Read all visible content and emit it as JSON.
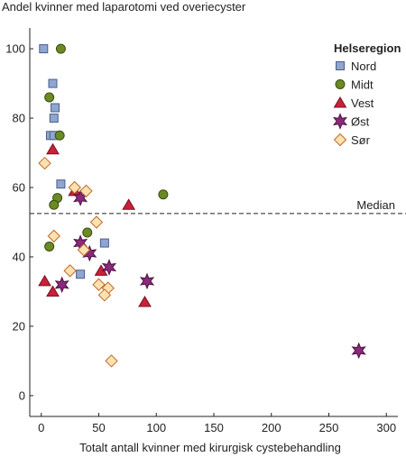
{
  "chart_data": {
    "type": "scatter",
    "title": "Andel kvinner med laparotomi ved overiecyster",
    "xlabel": "Totalt antall kvinner med kirurgisk cystebehandling",
    "ylabel": "",
    "xlim": [
      -10,
      310
    ],
    "ylim": [
      -6,
      106
    ],
    "xticks": [
      0,
      50,
      100,
      150,
      200,
      250,
      300
    ],
    "yticks": [
      0,
      20,
      40,
      60,
      80,
      100
    ],
    "grid": false,
    "legend_title": "Helseregion",
    "legend_position": "top-right",
    "median": {
      "label": "Median",
      "y": 52.5
    },
    "series": [
      {
        "name": "Nord",
        "marker": "square",
        "color": "#8fa6cf",
        "stroke": "#4a5e8c",
        "points": [
          [
            2,
            100
          ],
          [
            10,
            90
          ],
          [
            12,
            83
          ],
          [
            11,
            80
          ],
          [
            8,
            75
          ],
          [
            11,
            75
          ],
          [
            17,
            61
          ],
          [
            55,
            44
          ],
          [
            34,
            35
          ]
        ]
      },
      {
        "name": "Midt",
        "marker": "circle",
        "color": "#6b8a22",
        "stroke": "#3b4d10",
        "points": [
          [
            17,
            100
          ],
          [
            7,
            86
          ],
          [
            16,
            75
          ],
          [
            106,
            58
          ],
          [
            14,
            57
          ],
          [
            11,
            55
          ],
          [
            40,
            47
          ],
          [
            7,
            43
          ]
        ]
      },
      {
        "name": "Vest",
        "marker": "triangle",
        "color": "#c8213a",
        "stroke": "#7a1020",
        "points": [
          [
            10,
            71
          ],
          [
            29,
            59
          ],
          [
            76,
            55
          ],
          [
            52,
            36
          ],
          [
            3,
            33
          ],
          [
            10,
            30
          ],
          [
            90,
            27
          ]
        ]
      },
      {
        "name": "Øst",
        "marker": "star",
        "color": "#8a2a7a",
        "stroke": "#4d1044",
        "points": [
          [
            34,
            57
          ],
          [
            34,
            44
          ],
          [
            42,
            41
          ],
          [
            59,
            37
          ],
          [
            92,
            33
          ],
          [
            18,
            32
          ],
          [
            276,
            13
          ]
        ]
      },
      {
        "name": "Sør",
        "marker": "diamond",
        "color": "#fbe2b0",
        "stroke": "#c06a2a",
        "points": [
          [
            3,
            67
          ],
          [
            29,
            60
          ],
          [
            39,
            59
          ],
          [
            48,
            50
          ],
          [
            11,
            46
          ],
          [
            37,
            42
          ],
          [
            25,
            36
          ],
          [
            50,
            32
          ],
          [
            58,
            31
          ],
          [
            55,
            29
          ],
          [
            61,
            10
          ]
        ]
      }
    ]
  }
}
